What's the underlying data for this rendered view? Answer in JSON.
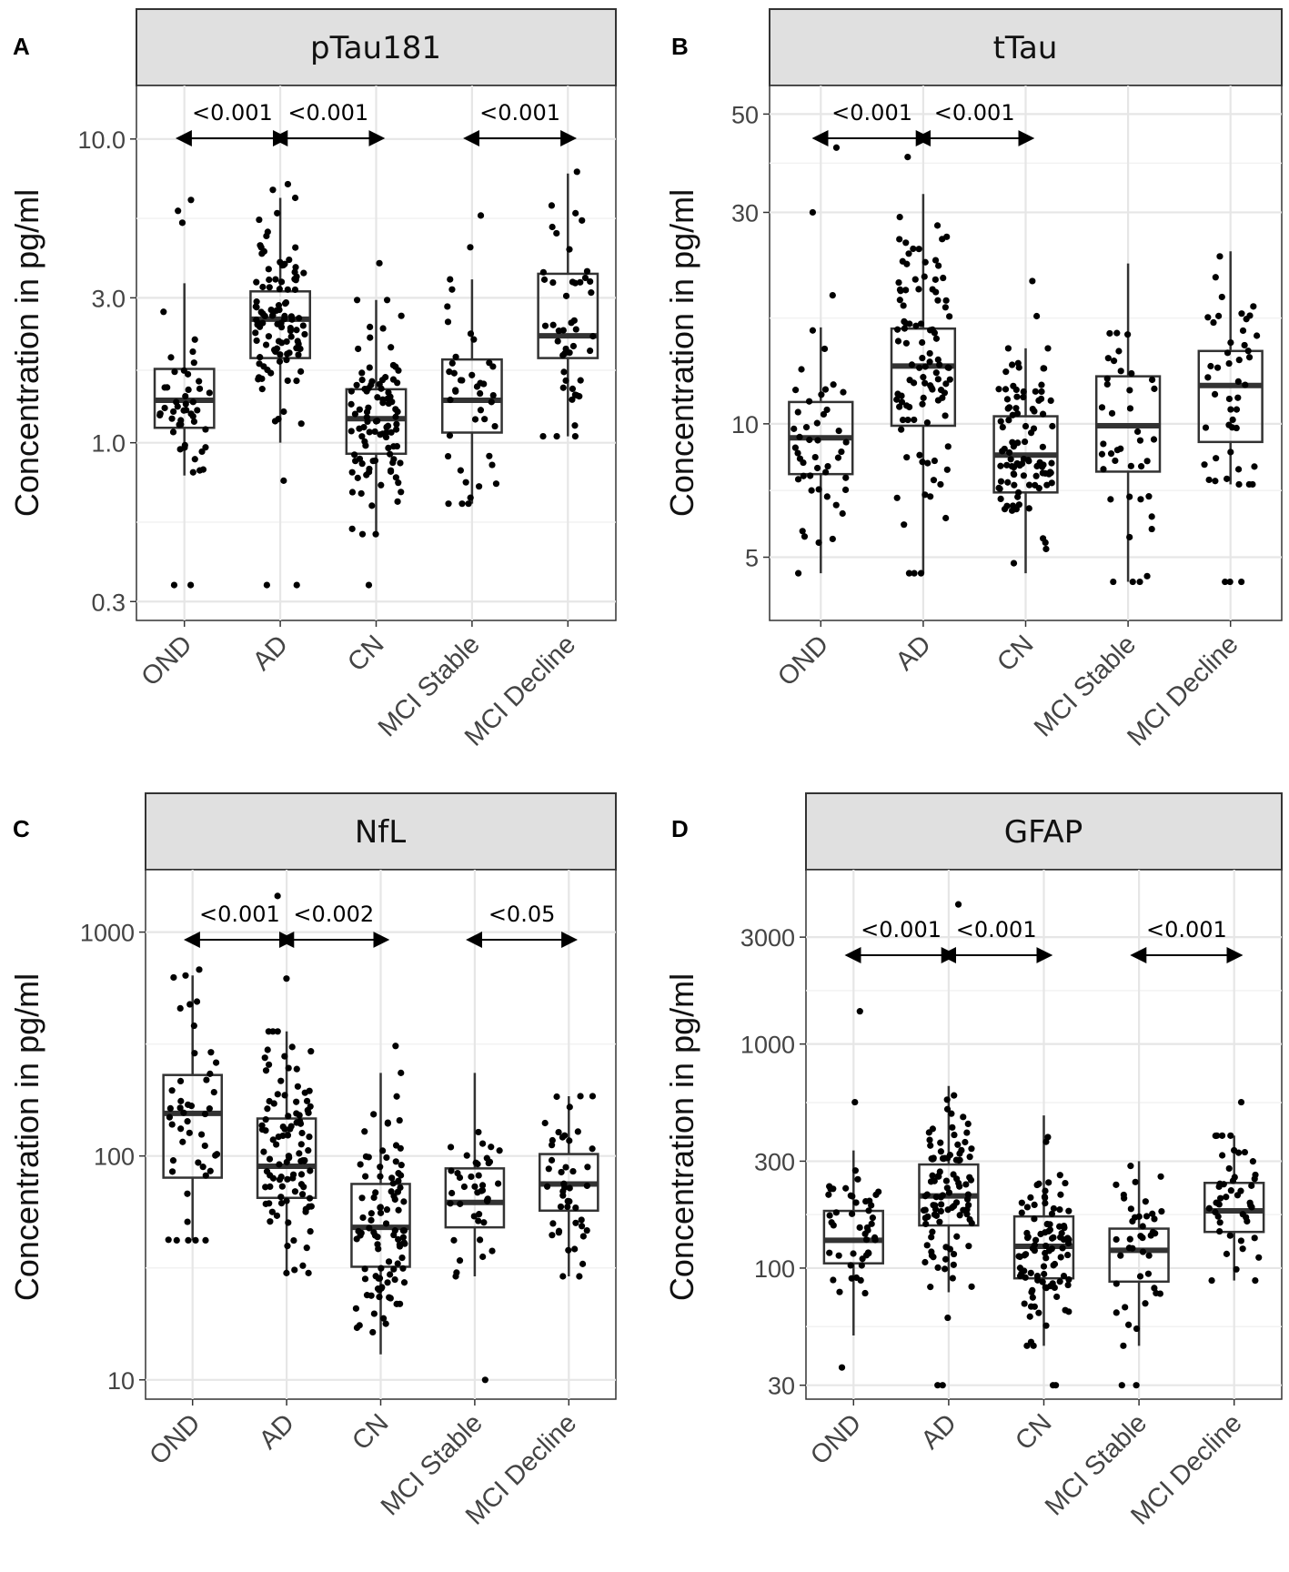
{
  "figure": {
    "panels": [
      {
        "letter": "A",
        "strip_title": "pTau181"
      },
      {
        "letter": "B",
        "strip_title": "tTau"
      },
      {
        "letter": "C",
        "strip_title": "NfL"
      },
      {
        "letter": "D",
        "strip_title": "GFAP"
      }
    ]
  },
  "colors": {
    "strip_fill": "#e0e0e0",
    "grid_major": "#e6e6e6",
    "grid_minor": "#f2f2f2",
    "box_line": "#333333",
    "point": "#000000"
  },
  "chart_data": [
    {
      "type": "box",
      "title": "pTau181",
      "ylabel": "Concentration in pg/ml",
      "yscale": "log10",
      "ylim": [
        0.26,
        15
      ],
      "yticks": [
        0.3,
        1.0,
        3.0,
        10.0
      ],
      "ytick_labels": [
        "0.3",
        "1.0",
        "3.0",
        "10.0"
      ],
      "categories": [
        "OND",
        "AD",
        "CN",
        "MCI Stable",
        "MCI Decline"
      ],
      "boxes": [
        {
          "q1": 1.12,
          "median": 1.38,
          "q3": 1.75,
          "whisker_low": 0.78,
          "whisker_high": 3.35,
          "n": 45,
          "outliers": [
            0.34,
            0.34,
            5.3,
            5.8,
            6.3
          ]
        },
        {
          "q1": 1.9,
          "median": 2.55,
          "q3": 3.15,
          "whisker_low": 1.0,
          "whisker_high": 6.4,
          "n": 100,
          "outliers": [
            0.34,
            0.34,
            0.75,
            7.1,
            6.8
          ]
        },
        {
          "q1": 0.92,
          "median": 1.2,
          "q3": 1.5,
          "whisker_low": 0.5,
          "whisker_high": 2.95,
          "n": 95,
          "outliers": [
            0.34,
            3.9
          ]
        },
        {
          "q1": 1.08,
          "median": 1.38,
          "q3": 1.88,
          "whisker_low": 0.63,
          "whisker_high": 3.45,
          "n": 40,
          "outliers": [
            4.4,
            5.6
          ]
        },
        {
          "q1": 1.9,
          "median": 2.25,
          "q3": 3.6,
          "whisker_low": 1.05,
          "whisker_high": 7.7,
          "n": 45,
          "outliers": [
            7.8
          ]
        }
      ],
      "comparisons": [
        {
          "from": "OND",
          "to": "AD",
          "label": "<0.001"
        },
        {
          "from": "AD",
          "to": "CN",
          "label": "<0.001"
        },
        {
          "from": "MCI Stable",
          "to": "MCI Decline",
          "label": "<0.001"
        }
      ]
    },
    {
      "type": "box",
      "title": "tTau",
      "ylabel": "Concentration in pg/ml",
      "yscale": "log10",
      "ylim": [
        3.6,
        58
      ],
      "yticks": [
        5,
        10,
        30,
        50
      ],
      "ytick_labels": [
        "5",
        "10",
        "30",
        "50"
      ],
      "categories": [
        "OND",
        "AD",
        "CN",
        "MCI Stable",
        "MCI Decline"
      ],
      "boxes": [
        {
          "q1": 7.7,
          "median": 9.3,
          "q3": 11.2,
          "whisker_low": 4.6,
          "whisker_high": 16.5,
          "n": 45,
          "outliers": [
            30,
            42,
            19.5
          ]
        },
        {
          "q1": 9.9,
          "median": 13.5,
          "q3": 16.4,
          "whisker_low": 4.6,
          "whisker_high": 33,
          "n": 100,
          "outliers": [
            40,
            4.6,
            4.6
          ]
        },
        {
          "q1": 7.0,
          "median": 8.5,
          "q3": 10.4,
          "whisker_low": 4.6,
          "whisker_high": 14.8,
          "n": 95,
          "outliers": [
            21,
            17.5
          ]
        },
        {
          "q1": 7.8,
          "median": 9.9,
          "q3": 12.8,
          "whisker_low": 4.4,
          "whisker_high": 23,
          "n": 40,
          "outliers": []
        },
        {
          "q1": 9.1,
          "median": 12.2,
          "q3": 14.6,
          "whisker_low": 7.3,
          "whisker_high": 24.5,
          "n": 45,
          "outliers": [
            4.4,
            4.4,
            4.4
          ]
        }
      ],
      "comparisons": [
        {
          "from": "OND",
          "to": "AD",
          "label": "<0.001"
        },
        {
          "from": "AD",
          "to": "CN",
          "label": "<0.001"
        }
      ]
    },
    {
      "type": "box",
      "title": "NfL",
      "ylabel": "Concentration in pg/ml",
      "yscale": "log10",
      "ylim": [
        8.2,
        1900
      ],
      "yticks": [
        10,
        100,
        1000
      ],
      "ytick_labels": [
        "10",
        "100",
        "1000"
      ],
      "categories": [
        "OND",
        "AD",
        "CN",
        "MCI Stable",
        "MCI Decline"
      ],
      "boxes": [
        {
          "q1": 80,
          "median": 155,
          "q3": 230,
          "whisker_low": 42,
          "whisker_high": 640,
          "n": 45,
          "outliers": [
            680
          ]
        },
        {
          "q1": 65,
          "median": 90,
          "q3": 147,
          "whisker_low": 30,
          "whisker_high": 360,
          "n": 100,
          "outliers": [
            1450,
            620
          ]
        },
        {
          "q1": 32,
          "median": 48,
          "q3": 75,
          "whisker_low": 13,
          "whisker_high": 235,
          "n": 95,
          "outliers": [
            310
          ]
        },
        {
          "q1": 48,
          "median": 62,
          "q3": 88,
          "whisker_low": 29,
          "whisker_high": 235,
          "n": 40,
          "outliers": [
            10
          ]
        },
        {
          "q1": 57,
          "median": 75,
          "q3": 102,
          "whisker_low": 29,
          "whisker_high": 185,
          "n": 45,
          "outliers": []
        }
      ],
      "comparisons": [
        {
          "from": "OND",
          "to": "AD",
          "label": "<0.001"
        },
        {
          "from": "AD",
          "to": "CN",
          "label": "<0.002"
        },
        {
          "from": "MCI Stable",
          "to": "MCI Decline",
          "label": "<0.05"
        }
      ]
    },
    {
      "type": "box",
      "title": "GFAP",
      "ylabel": "Concentration in pg/ml",
      "yscale": "log10",
      "ylim": [
        26,
        6000
      ],
      "yticks": [
        30,
        100,
        300,
        1000,
        3000
      ],
      "ytick_labels": [
        "30",
        "100",
        "300",
        "1000",
        "3000"
      ],
      "categories": [
        "OND",
        "AD",
        "CN",
        "MCI Stable",
        "MCI Decline"
      ],
      "boxes": [
        {
          "q1": 105,
          "median": 133,
          "q3": 180,
          "whisker_low": 50,
          "whisker_high": 335,
          "n": 45,
          "outliers": [
            36,
            1400,
            550
          ]
        },
        {
          "q1": 155,
          "median": 210,
          "q3": 290,
          "whisker_low": 78,
          "whisker_high": 650,
          "n": 100,
          "outliers": [
            30,
            30,
            4200,
            60
          ]
        },
        {
          "q1": 90,
          "median": 125,
          "q3": 170,
          "whisker_low": 45,
          "whisker_high": 480,
          "n": 95,
          "outliers": [
            30,
            30
          ]
        },
        {
          "q1": 87,
          "median": 120,
          "q3": 150,
          "whisker_low": 45,
          "whisker_high": 300,
          "n": 40,
          "outliers": [
            30,
            30
          ]
        },
        {
          "q1": 145,
          "median": 180,
          "q3": 240,
          "whisker_low": 88,
          "whisker_high": 390,
          "n": 45,
          "outliers": [
            550
          ]
        }
      ],
      "comparisons": [
        {
          "from": "OND",
          "to": "AD",
          "label": "<0.001"
        },
        {
          "from": "AD",
          "to": "CN",
          "label": "<0.001"
        },
        {
          "from": "MCI Stable",
          "to": "MCI Decline",
          "label": "<0.001"
        }
      ]
    }
  ]
}
